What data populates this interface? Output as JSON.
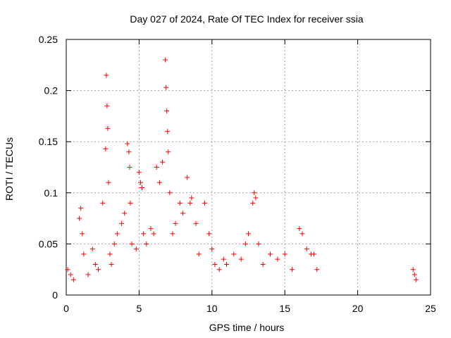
{
  "chart_data": {
    "type": "scatter",
    "title": "Day 027 of 2024, Rate Of TEC Index for receiver ssia",
    "xlabel": "GPS time / hours",
    "ylabel": "ROTI / TECUs",
    "xlim": [
      0,
      25
    ],
    "ylim": [
      0,
      0.25
    ],
    "xticks": [
      "0",
      "5",
      "10",
      "15",
      "20",
      "25"
    ],
    "yticks": [
      "0",
      "0.05",
      "0.1",
      "0.15",
      "0.2",
      "0.25"
    ],
    "xtick_values": [
      0,
      5,
      10,
      15,
      20,
      25
    ],
    "ytick_values": [
      0,
      0.05,
      0.1,
      0.15,
      0.2,
      0.25
    ],
    "grid": true,
    "marker": "+",
    "marker_color": "#ff0000",
    "series": [
      {
        "name": "ROTI",
        "x": [
          0.1,
          0.3,
          0.5,
          0.9,
          1.0,
          1.1,
          1.2,
          1.5,
          1.8,
          2.0,
          2.2,
          2.5,
          2.7,
          2.75,
          2.8,
          2.85,
          2.9,
          3.0,
          3.1,
          3.3,
          3.5,
          3.8,
          4.0,
          4.2,
          4.3,
          4.35,
          4.4,
          4.5,
          4.8,
          5.0,
          5.1,
          5.2,
          5.3,
          5.5,
          5.8,
          6.0,
          6.2,
          6.4,
          6.6,
          6.8,
          6.85,
          6.9,
          6.95,
          7.0,
          7.1,
          7.3,
          7.5,
          7.8,
          8.0,
          8.3,
          8.5,
          8.6,
          8.9,
          9.1,
          9.5,
          9.8,
          10.0,
          10.2,
          10.5,
          10.8,
          11.0,
          11.5,
          12.0,
          12.3,
          12.5,
          12.8,
          12.9,
          13.0,
          13.2,
          13.5,
          14.0,
          14.5,
          15.0,
          15.5,
          16.0,
          16.2,
          16.5,
          16.8,
          17.0,
          17.2,
          23.8,
          23.9,
          24.0
        ],
        "y": [
          0.025,
          0.02,
          0.015,
          0.075,
          0.085,
          0.06,
          0.04,
          0.02,
          0.045,
          0.03,
          0.025,
          0.09,
          0.143,
          0.215,
          0.185,
          0.163,
          0.11,
          0.04,
          0.03,
          0.05,
          0.06,
          0.07,
          0.08,
          0.148,
          0.14,
          0.125,
          0.09,
          0.05,
          0.045,
          0.12,
          0.11,
          0.105,
          0.06,
          0.05,
          0.065,
          0.06,
          0.125,
          0.11,
          0.13,
          0.23,
          0.203,
          0.18,
          0.16,
          0.14,
          0.1,
          0.06,
          0.07,
          0.09,
          0.08,
          0.115,
          0.09,
          0.095,
          0.07,
          0.04,
          0.09,
          0.06,
          0.045,
          0.03,
          0.025,
          0.035,
          0.03,
          0.04,
          0.035,
          0.05,
          0.06,
          0.09,
          0.1,
          0.095,
          0.05,
          0.03,
          0.04,
          0.035,
          0.04,
          0.025,
          0.065,
          0.06,
          0.045,
          0.04,
          0.04,
          0.025,
          0.025,
          0.02,
          0.015
        ]
      }
    ]
  }
}
